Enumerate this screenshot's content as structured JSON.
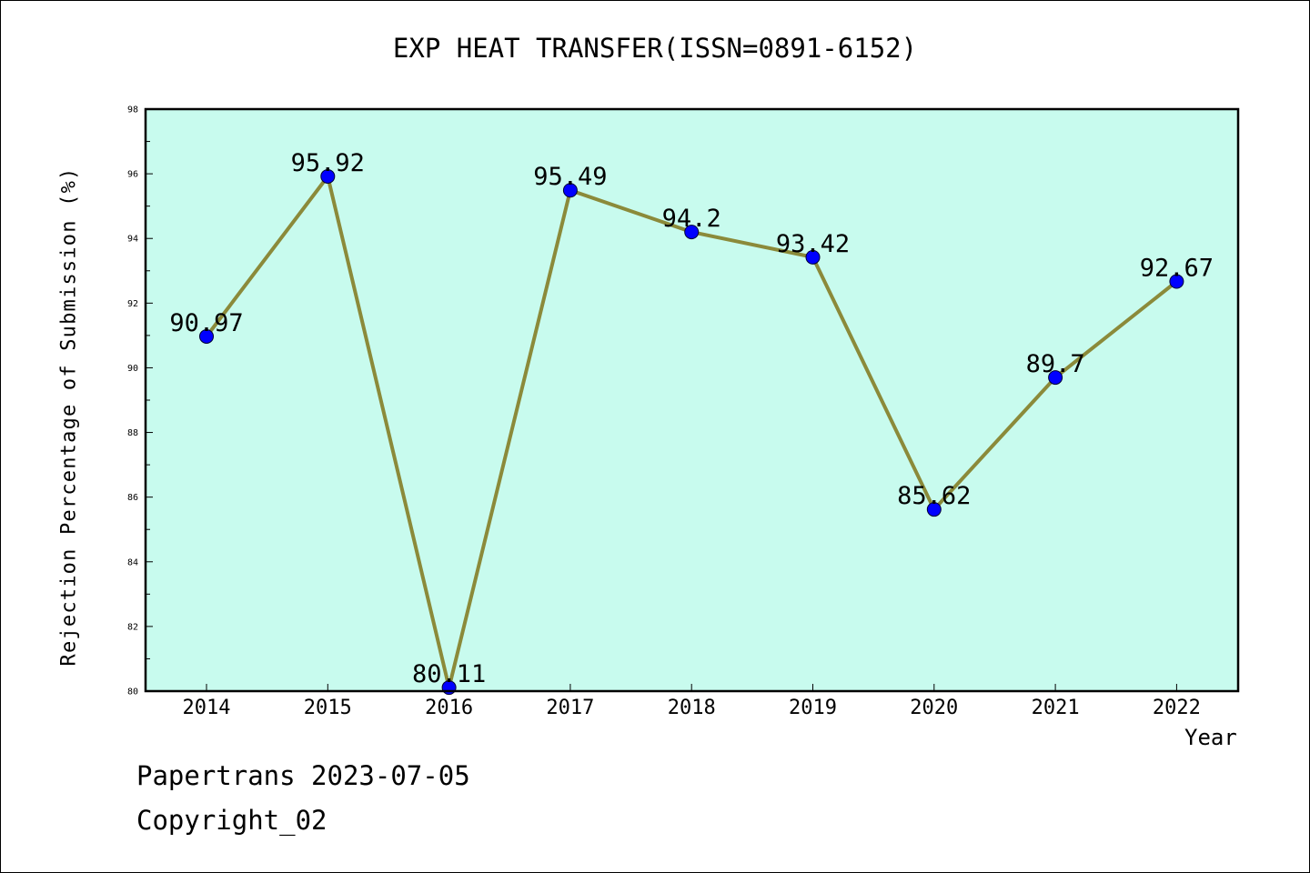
{
  "page": {
    "title": "EXP HEAT TRANSFER(ISSN=0891-6152)",
    "footer_line1": "Papertrans 2023-07-05",
    "footer_line2": "Copyright_02"
  },
  "chart_data": {
    "type": "line",
    "title": "EXP HEAT TRANSFER(ISSN=0891-6152)",
    "xlabel": "Year",
    "ylabel": "Rejection Percentage of Submission (%)",
    "categories": [
      "2014",
      "2015",
      "2016",
      "2017",
      "2018",
      "2019",
      "2020",
      "2021",
      "2022"
    ],
    "series": [
      {
        "values": [
          90.97,
          95.92,
          80.11,
          95.49,
          94.2,
          93.42,
          85.62,
          89.7,
          92.67
        ],
        "data_labels": [
          "90.97",
          "95.92",
          "80.11",
          "95.49",
          "94.2",
          "93.42",
          "85.62",
          "89.7",
          "92.67"
        ]
      }
    ],
    "ylim": [
      80,
      98
    ],
    "y_ticks": [
      "80",
      "82",
      "84",
      "86",
      "88",
      "90",
      "92",
      "94",
      "96",
      "98"
    ],
    "grid": false,
    "legend": "none",
    "colors": {
      "plot_background": "#c8fbee",
      "line": "#8b8a3a",
      "marker": "#0000ff"
    }
  }
}
